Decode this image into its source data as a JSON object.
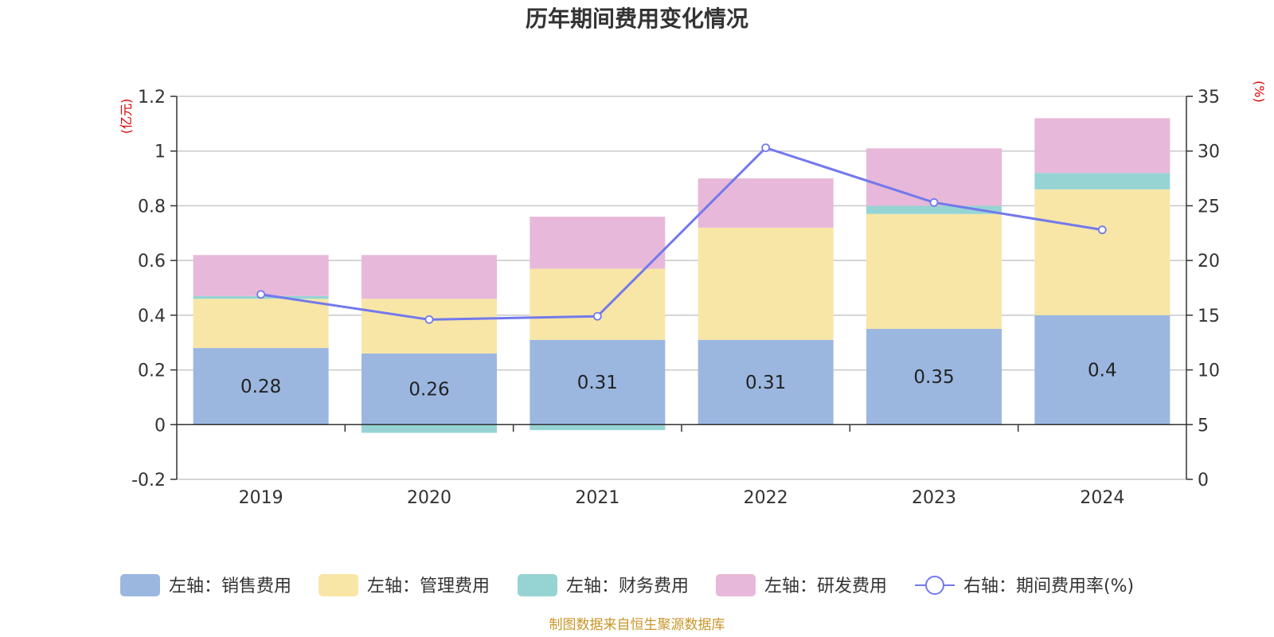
{
  "chart_data": {
    "type": "bar",
    "stacked": true,
    "title": "历年期间费用变化情况",
    "categories": [
      "2019",
      "2020",
      "2021",
      "2022",
      "2023",
      "2024"
    ],
    "left_axis": {
      "unit": "(亿元)",
      "ylim": [
        -0.2,
        1.2
      ],
      "ticks": [
        -0.2,
        0,
        0.2,
        0.4,
        0.6,
        0.8,
        1,
        1.2
      ],
      "tick_labels": [
        "-0.2",
        "0",
        "0.2",
        "0.4",
        "0.6",
        "0.8",
        "1",
        "1.2"
      ]
    },
    "right_axis": {
      "unit": "(%)",
      "ylim": [
        0,
        35
      ],
      "ticks": [
        0,
        5,
        10,
        15,
        20,
        25,
        30,
        35
      ],
      "tick_labels": [
        "0",
        "5",
        "10",
        "15",
        "20",
        "25",
        "30",
        "35"
      ]
    },
    "series": [
      {
        "name": "左轴：销售费用",
        "type": "bar",
        "axis": "left",
        "color": "#9bb7e0",
        "values": [
          0.28,
          0.26,
          0.31,
          0.31,
          0.35,
          0.4
        ],
        "data_labels": [
          "0.28",
          "0.26",
          "0.31",
          "0.31",
          "0.35",
          "0.4"
        ]
      },
      {
        "name": "左轴：管理费用",
        "type": "bar",
        "axis": "left",
        "color": "#f8e6a6",
        "values": [
          0.18,
          0.2,
          0.26,
          0.41,
          0.42,
          0.46
        ]
      },
      {
        "name": "左轴：财务费用",
        "type": "bar",
        "axis": "left",
        "color": "#96d4d4",
        "values": [
          0.01,
          -0.03,
          -0.02,
          0.0,
          0.03,
          0.06
        ]
      },
      {
        "name": "左轴：研发费用",
        "type": "bar",
        "axis": "left",
        "color": "#e7b8d9",
        "values": [
          0.15,
          0.16,
          0.19,
          0.18,
          0.21,
          0.2
        ]
      },
      {
        "name": "右轴：期间费用率(%)",
        "type": "line",
        "axis": "right",
        "color": "#7379ec",
        "values": [
          16.9,
          14.6,
          14.9,
          30.3,
          25.3,
          22.8
        ]
      }
    ],
    "unit_color": "#e00000",
    "source_color": "#c8962a",
    "legend_position": "bottom"
  },
  "source_note": "制图数据来自恒生聚源数据库"
}
